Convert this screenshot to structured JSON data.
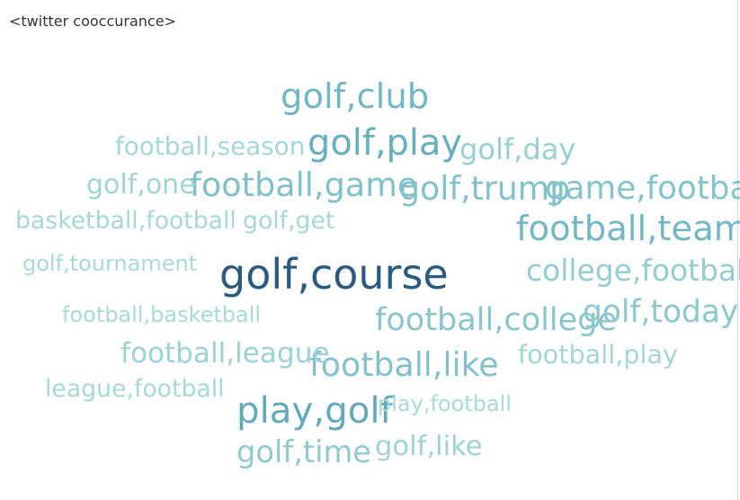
{
  "sheet": {
    "title": "<twitter cooccurance>"
  },
  "chart_data": {
    "type": "wordcloud",
    "title": "<twitter cooccurance>",
    "palette": {
      "high": "#2b5a80",
      "mid": "#6ab2c2",
      "low": "#a9dad5"
    },
    "words": [
      {
        "text": "golf,course",
        "weight": 100
      },
      {
        "text": "play,golf",
        "weight": 70
      },
      {
        "text": "golf,play",
        "weight": 68
      },
      {
        "text": "golf,club",
        "weight": 62
      },
      {
        "text": "football,team",
        "weight": 62
      },
      {
        "text": "football,game",
        "weight": 55
      },
      {
        "text": "golf,trump",
        "weight": 54
      },
      {
        "text": "football,like",
        "weight": 54
      },
      {
        "text": "game,football",
        "weight": 52
      },
      {
        "text": "football,college",
        "weight": 50
      },
      {
        "text": "golf,today",
        "weight": 48
      },
      {
        "text": "golf,time",
        "weight": 46
      },
      {
        "text": "college,football",
        "weight": 44
      },
      {
        "text": "golf,day",
        "weight": 42
      },
      {
        "text": "football,league",
        "weight": 40
      },
      {
        "text": "golf,like",
        "weight": 39
      },
      {
        "text": "golf,one",
        "weight": 38
      },
      {
        "text": "football,play",
        "weight": 36
      },
      {
        "text": "football,season",
        "weight": 35
      },
      {
        "text": "golf,get",
        "weight": 34
      },
      {
        "text": "basketball,football",
        "weight": 34
      },
      {
        "text": "league,football",
        "weight": 34
      },
      {
        "text": "football,basketball",
        "weight": 33
      },
      {
        "text": "golf,tournament",
        "weight": 33
      },
      {
        "text": "play,football",
        "weight": 33
      }
    ]
  }
}
